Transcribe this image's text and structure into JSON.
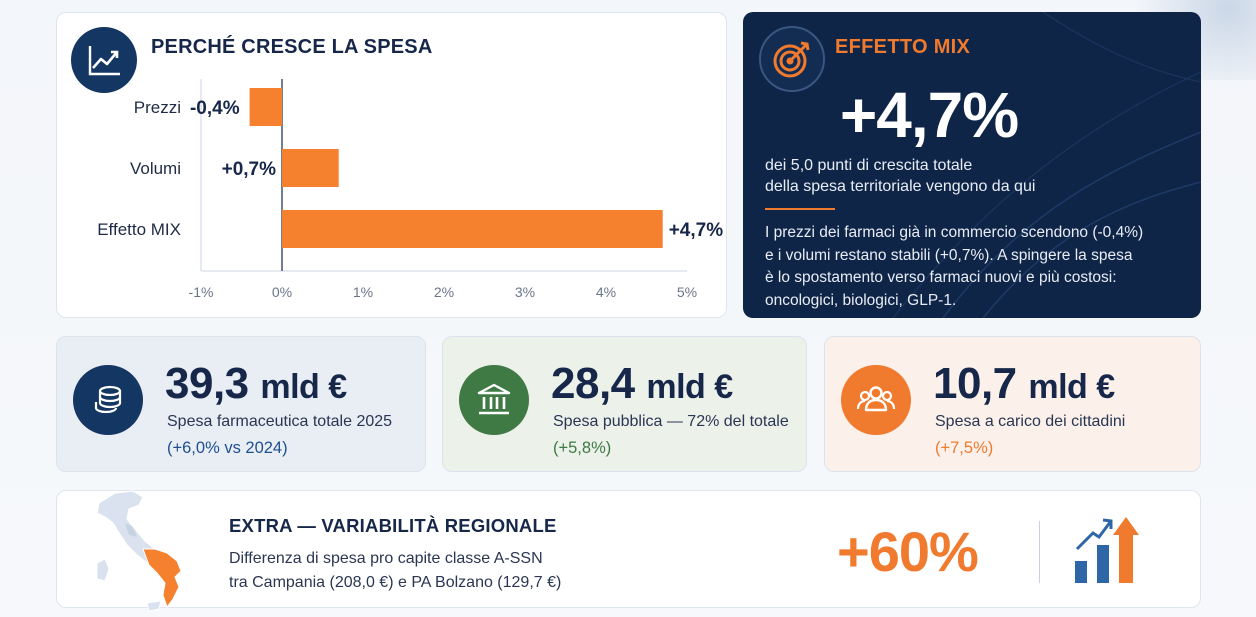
{
  "chart_card": {
    "title": "PERCHÉ CRESCE LA SPESA",
    "icon": "trend-up-icon"
  },
  "chart_data": {
    "type": "bar",
    "orientation": "horizontal",
    "title": "PERCHÉ CRESCE LA SPESA",
    "categories": [
      "Prezzi",
      "Volumi",
      "Effetto MIX"
    ],
    "values": [
      -0.4,
      0.7,
      4.7
    ],
    "value_labels": [
      "-0,4%",
      "+0,7%",
      "+4,7%"
    ],
    "xlim": [
      -1,
      5
    ],
    "x_ticks": [
      "-1%",
      "0%",
      "1%",
      "2%",
      "3%",
      "4%",
      "5%"
    ],
    "color": "#f5812f",
    "grid": false
  },
  "mix_card": {
    "title": "EFFETTO MIX",
    "icon": "target-icon",
    "big_value": "+4,7%",
    "subtitle_line1": "dei 5,0 punti di crescita totale",
    "subtitle_line2": "della spesa territoriale vengono da qui",
    "body_line1": "I prezzi dei farmaci già in commercio scendono (-0,4%)",
    "body_line2": "e i volumi restano stabili (+0,7%). A spingere la spesa",
    "body_line3": "è lo spostamento verso farmaci nuovi e più costosi:",
    "body_line4": "oncologici, biologici, GLP-1."
  },
  "kpis": [
    {
      "icon": "coins-icon",
      "value": "39,3",
      "unit": "mld €",
      "label": "Spesa farmaceutica totale 2025",
      "delta": "(+6,0% vs 2024)",
      "color": "#143663",
      "delta_color": "#1f4f8f"
    },
    {
      "icon": "bank-icon",
      "value": "28,4",
      "unit": "mld €",
      "label": "Spesa pubblica — 72% del totale",
      "delta": "(+5,8%)",
      "color": "#3f7a45",
      "delta_color": "#3f7a45"
    },
    {
      "icon": "people-icon",
      "value": "10,7",
      "unit": "mld €",
      "label": "Spesa a carico dei cittadini",
      "delta": "(+7,5%)",
      "color": "#f07a2e",
      "delta_color": "#f07a2e"
    }
  ],
  "extra": {
    "title": "EXTRA — VARIABILITÀ REGIONALE",
    "desc_line1": "Differenza di spesa pro capite classe A-SSN",
    "desc_line2": "tra Campania (208,0 €) e PA Bolzano (129,7 €)",
    "big_value": "+60%",
    "map_icon": "italy-map-icon",
    "bars_icon": "bar-chart-growth-icon"
  }
}
